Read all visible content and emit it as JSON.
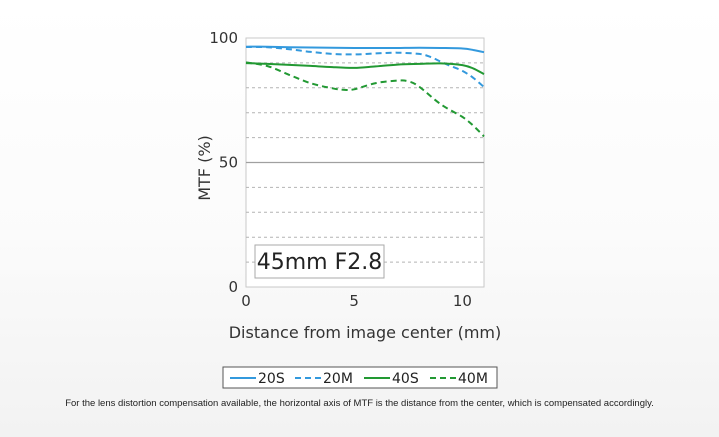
{
  "chart_data": {
    "type": "line",
    "title": "",
    "xlabel": "Distance from image center (mm)",
    "ylabel": "MTF (%)",
    "xlim": [
      0,
      11
    ],
    "ylim": [
      0,
      100
    ],
    "xticks": [
      0,
      5,
      10
    ],
    "yticks": [
      0,
      50,
      100
    ],
    "grid": "horizontal dashed",
    "annotation": "45mm F2.8",
    "legend_position": "bottom-center",
    "series": [
      {
        "name": "20S",
        "style": "solid",
        "color": "#3399dd",
        "x": [
          0,
          1,
          2,
          3,
          4,
          5,
          6,
          7,
          8,
          9,
          10,
          10.5,
          11
        ],
        "y": [
          96.5,
          96.5,
          96.3,
          96.2,
          96.1,
          96.0,
          96.0,
          96.0,
          96.1,
          96.0,
          95.8,
          95.2,
          94.3
        ]
      },
      {
        "name": "20M",
        "style": "dashed",
        "color": "#3399dd",
        "x": [
          0,
          1,
          2,
          3,
          4,
          5,
          6,
          7,
          8,
          8.5,
          9,
          9.5,
          10,
          10.5,
          11
        ],
        "y": [
          96.4,
          96.3,
          95.5,
          94.4,
          93.6,
          93.4,
          93.8,
          94.1,
          93.6,
          92.5,
          90.5,
          88.6,
          86.8,
          84.0,
          80.3
        ]
      },
      {
        "name": "40S",
        "style": "solid",
        "color": "#229933",
        "x": [
          0,
          1,
          2,
          3,
          4,
          5,
          6,
          7,
          8,
          9,
          10,
          10.5,
          11
        ],
        "y": [
          89.9,
          89.6,
          89.2,
          88.8,
          88.3,
          88.0,
          88.6,
          89.3,
          89.6,
          89.8,
          89.1,
          87.8,
          85.5
        ]
      },
      {
        "name": "40M",
        "style": "dashed",
        "color": "#229933",
        "x": [
          0,
          1,
          2,
          3,
          4,
          4.5,
          5,
          6,
          7,
          7.5,
          8,
          9,
          10,
          10.5,
          11
        ],
        "y": [
          90.2,
          88.7,
          85.2,
          81.8,
          79.8,
          79.2,
          79.4,
          81.9,
          82.9,
          82.6,
          80.5,
          73.4,
          68.3,
          64.8,
          60.5
        ]
      }
    ]
  },
  "footnote": "For the lens distortion compensation available, the horizontal axis of MTF is the distance from the center, which is compensated accordingly."
}
